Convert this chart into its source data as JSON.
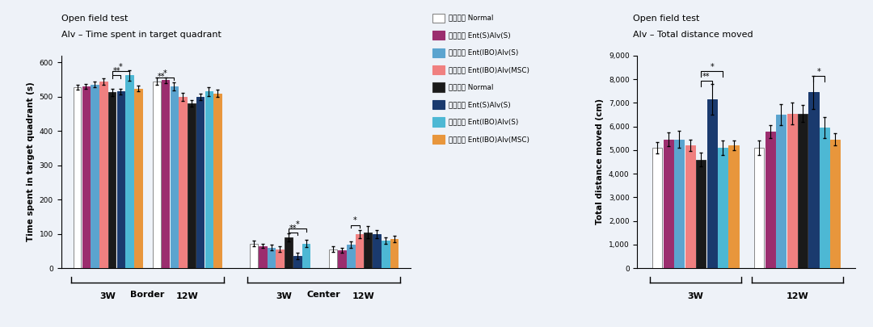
{
  "chart1": {
    "title_line1": "Open field test",
    "title_line2": "Alv – Time spent in target quadrant",
    "ylabel": "Time spent in target quadrant (s)",
    "time_labels": [
      "3W",
      "12W",
      "3W",
      "12W"
    ],
    "bar_values": {
      "Border_3W": [
        528,
        530,
        536,
        544,
        513,
        515,
        562,
        524
      ],
      "Border_12W": [
        545,
        548,
        530,
        499,
        481,
        500,
        515,
        510
      ],
      "Center_3W": [
        72,
        65,
        60,
        55,
        90,
        35,
        72,
        null
      ],
      "Center_12W": [
        55,
        52,
        68,
        100,
        105,
        100,
        80,
        85
      ]
    },
    "bar_errors": {
      "Border_3W": [
        8,
        7,
        8,
        9,
        10,
        8,
        15,
        9
      ],
      "Border_12W": [
        10,
        8,
        12,
        12,
        10,
        10,
        12,
        10
      ],
      "Center_3W": [
        8,
        7,
        8,
        8,
        12,
        10,
        10,
        null
      ],
      "Center_12W": [
        8,
        8,
        10,
        12,
        18,
        12,
        10,
        10
      ]
    },
    "colors": [
      "#ffffff",
      "#9B2D6E",
      "#5BA4CF",
      "#F08080",
      "#1a1a1a",
      "#1a3a6e",
      "#4DB8D4",
      "#E8963C"
    ],
    "edgecolors": [
      "#888888",
      "#9B2D6E",
      "#5BA4CF",
      "#F08080",
      "#333333",
      "#1a3a6e",
      "#4DB8D4",
      "#E8963C"
    ],
    "ylim": [
      0,
      620
    ],
    "yticks": [
      0,
      100,
      200,
      300,
      400,
      500,
      600
    ]
  },
  "chart2": {
    "title_line1": "Open field test",
    "title_line2": "Alv – Total distance moved",
    "ylabel": "Total distance moved (cm)",
    "time_labels": [
      "3W",
      "12W"
    ],
    "bar_values": {
      "3W": [
        5100,
        5450,
        5450,
        5200,
        4600,
        7150,
        5100,
        5200
      ],
      "12W": [
        5100,
        5780,
        6500,
        6550,
        6550,
        7450,
        5950,
        5450
      ]
    },
    "bar_errors": {
      "3W": [
        250,
        300,
        350,
        250,
        300,
        650,
        300,
        200
      ],
      "12W": [
        300,
        280,
        450,
        450,
        350,
        700,
        450,
        250
      ]
    },
    "colors": [
      "#ffffff",
      "#9B2D6E",
      "#5BA4CF",
      "#F08080",
      "#1a1a1a",
      "#1a3a6e",
      "#4DB8D4",
      "#E8963C"
    ],
    "edgecolors": [
      "#888888",
      "#9B2D6E",
      "#5BA4CF",
      "#F08080",
      "#333333",
      "#1a3a6e",
      "#4DB8D4",
      "#E8963C"
    ],
    "ylim": [
      0,
      9000
    ],
    "yticks": [
      0,
      1000,
      2000,
      3000,
      4000,
      5000,
      6000,
      7000,
      8000,
      9000
    ]
  },
  "legend_labels_short": [
    "Normal",
    "Ent(S)Alv(S)",
    "Ent(IBO)Alv(S)",
    "Ent(IBO)Alv(MSC)",
    "Normal",
    "Ent(S)Alv(S)",
    "Ent(IBO)Alv(S)",
    "Ent(IBO)Alv(MSC)"
  ],
  "legend_colors": [
    "#ffffff",
    "#9B2D6E",
    "#5BA4CF",
    "#F08080",
    "#1a1a1a",
    "#1a3a6e",
    "#4DB8D4",
    "#E8963C"
  ],
  "legend_edgecolors": [
    "#888888",
    "#9B2D6E",
    "#5BA4CF",
    "#F08080",
    "#333333",
    "#1a3a6e",
    "#4DB8D4",
    "#E8963C"
  ],
  "background_color": "#eef2f8"
}
